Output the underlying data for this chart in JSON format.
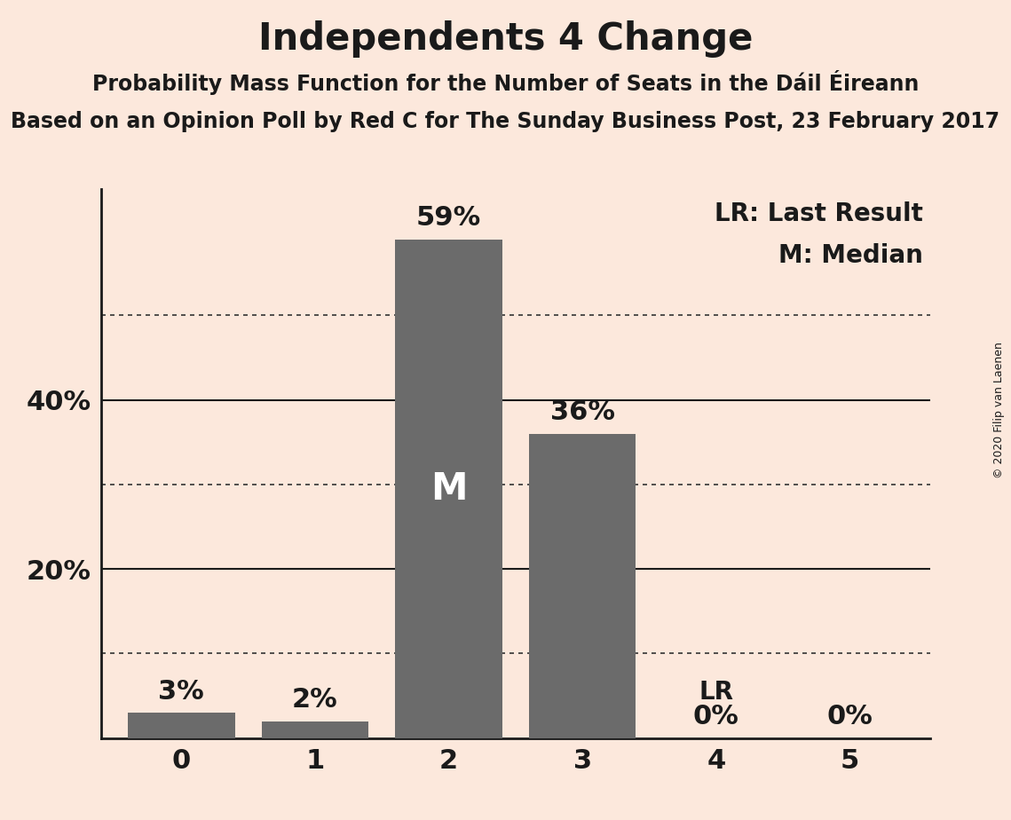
{
  "title": "Independents 4 Change",
  "subtitle1": "Probability Mass Function for the Number of Seats in the Dáil Éireann",
  "subtitle2": "Based on an Opinion Poll by Red C for The Sunday Business Post, 23 February 2017",
  "categories": [
    0,
    1,
    2,
    3,
    4,
    5
  ],
  "values": [
    0.03,
    0.02,
    0.59,
    0.36,
    0.0,
    0.0
  ],
  "bar_color": "#6b6b6b",
  "background_color": "#fce8dc",
  "ylabel_ticks": [
    0.2,
    0.4
  ],
  "dotted_grid_lines": [
    0.1,
    0.3,
    0.5
  ],
  "solid_grid_lines": [
    0.2,
    0.4
  ],
  "ylim": [
    0,
    0.65
  ],
  "bar_labels": [
    "3%",
    "2%",
    "59%",
    "36%",
    "0%",
    "0%"
  ],
  "median_bar_index": 2,
  "median_label": "M",
  "lr_bar_index": 4,
  "lr_label": "LR",
  "legend_text1": "LR: Last Result",
  "legend_text2": "M: Median",
  "copyright_text": "© 2020 Filip van Laenen",
  "title_fontsize": 30,
  "subtitle_fontsize": 17,
  "bar_label_fontsize": 22,
  "tick_fontsize": 22,
  "legend_fontsize": 20,
  "median_label_fontsize": 30,
  "lr_label_fontsize": 20,
  "copyright_fontsize": 9
}
